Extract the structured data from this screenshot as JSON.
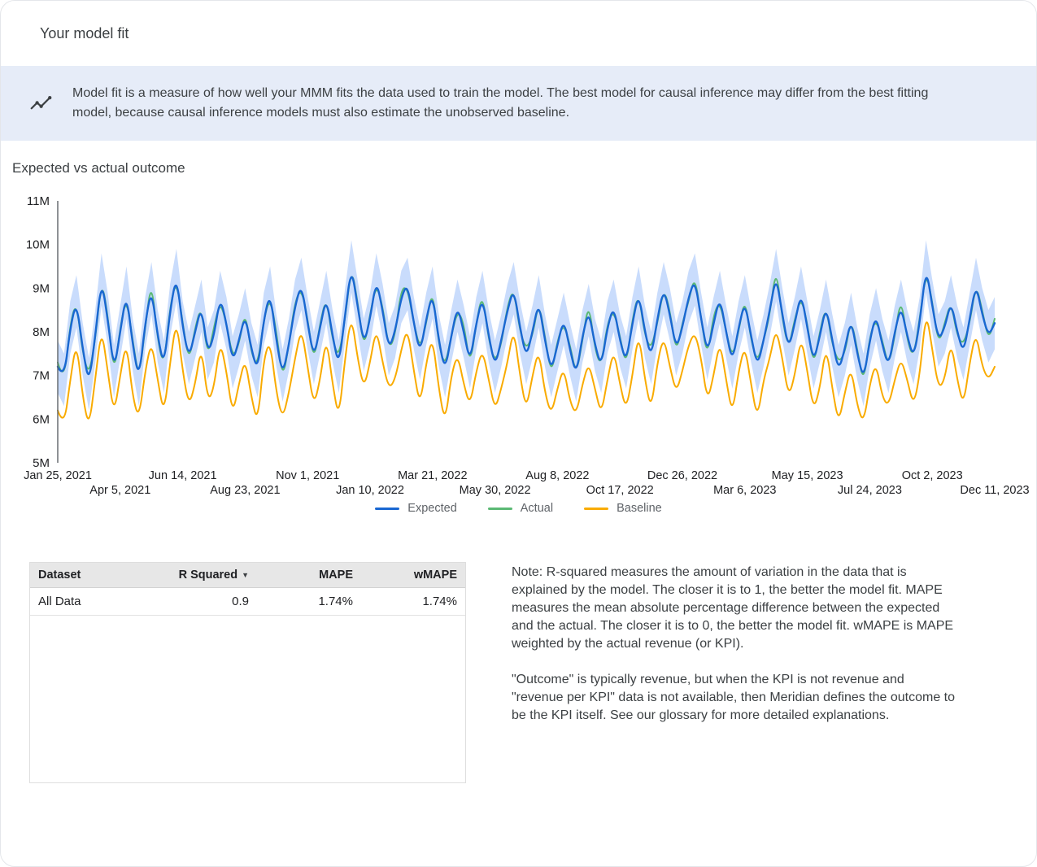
{
  "header": {
    "title": "Your model fit"
  },
  "banner": {
    "icon": "insights-icon",
    "text": "Model fit is a measure of how well your MMM fits the data used to train the model. The best model for causal inference may differ from the best fitting model, because causal inference models must also estimate the unobserved baseline."
  },
  "section": {
    "title": "Expected vs actual outcome"
  },
  "chart_data": {
    "type": "line",
    "title": "Expected vs actual outcome",
    "unit": "M",
    "grid": false,
    "legend_position": "bottom",
    "ylim": [
      5,
      11
    ],
    "y_tick_values": [
      5,
      6,
      7,
      8,
      9,
      10,
      11
    ],
    "y_tick_labels": [
      "5M",
      "6M",
      "7M",
      "8M",
      "9M",
      "10M",
      "11M"
    ],
    "x_ticks": [
      {
        "label": "Jan 25, 2021",
        "week": 0,
        "row": 1
      },
      {
        "label": "Apr 5, 2021",
        "week": 10,
        "row": 2
      },
      {
        "label": "Jun 14, 2021",
        "week": 20,
        "row": 1
      },
      {
        "label": "Aug 23, 2021",
        "week": 30,
        "row": 2
      },
      {
        "label": "Nov 1, 2021",
        "week": 40,
        "row": 1
      },
      {
        "label": "Jan 10, 2022",
        "week": 50,
        "row": 2
      },
      {
        "label": "Mar 21, 2022",
        "week": 60,
        "row": 1
      },
      {
        "label": "May 30, 2022",
        "week": 70,
        "row": 2
      },
      {
        "label": "Aug 8, 2022",
        "week": 80,
        "row": 1
      },
      {
        "label": "Oct 17, 2022",
        "week": 90,
        "row": 2
      },
      {
        "label": "Dec 26, 2022",
        "week": 100,
        "row": 1
      },
      {
        "label": "Mar 6, 2023",
        "week": 110,
        "row": 2
      },
      {
        "label": "May 15, 2023",
        "week": 120,
        "row": 1
      },
      {
        "label": "Jul 24, 2023",
        "week": 130,
        "row": 2
      },
      {
        "label": "Oct 2, 2023",
        "week": 140,
        "row": 1
      },
      {
        "label": "Dec 11, 2023",
        "week": 150,
        "row": 2
      }
    ],
    "band": {
      "series": "Expected",
      "half_width": 0.6,
      "color": "#a8c7fa",
      "opacity": 0.62
    },
    "series": [
      {
        "name": "Expected",
        "color": "#1967d2",
        "values": [
          7.2,
          6.9,
          8.1,
          8.7,
          7.6,
          6.8,
          7.9,
          9.2,
          8.3,
          7.1,
          8.0,
          8.9,
          7.7,
          6.9,
          8.2,
          9.0,
          7.9,
          7.2,
          8.5,
          9.3,
          8.1,
          7.4,
          8.0,
          8.6,
          7.5,
          7.9,
          8.8,
          8.2,
          7.3,
          7.8,
          8.4,
          7.6,
          7.1,
          8.3,
          8.9,
          7.8,
          7.0,
          7.7,
          8.6,
          9.1,
          8.2,
          7.4,
          8.1,
          8.8,
          7.9,
          7.2,
          8.4,
          9.5,
          8.6,
          7.7,
          8.3,
          9.2,
          8.5,
          7.6,
          8.0,
          8.8,
          9.1,
          8.2,
          7.5,
          8.3,
          8.9,
          7.8,
          7.1,
          7.9,
          8.6,
          8.0,
          7.3,
          8.2,
          8.8,
          7.9,
          7.2,
          7.8,
          8.5,
          9.0,
          8.1,
          7.4,
          8.0,
          8.7,
          7.8,
          7.1,
          7.7,
          8.3,
          7.6,
          7.0,
          7.9,
          8.5,
          7.7,
          7.2,
          8.1,
          8.6,
          7.8,
          7.3,
          8.2,
          8.9,
          8.0,
          7.4,
          8.3,
          9.0,
          8.4,
          7.6,
          8.1,
          8.8,
          9.2,
          8.3,
          7.5,
          8.2,
          8.8,
          8.0,
          7.3,
          8.1,
          8.7,
          7.9,
          7.2,
          7.8,
          8.5,
          9.3,
          8.4,
          7.6,
          8.2,
          8.9,
          8.1,
          7.3,
          7.9,
          8.6,
          7.8,
          7.1,
          7.6,
          8.3,
          7.5,
          6.9,
          7.8,
          8.4,
          7.7,
          7.2,
          8.0,
          8.6,
          7.9,
          7.4,
          8.2,
          9.5,
          8.6,
          7.8,
          8.1,
          8.7,
          8.0,
          7.5,
          8.3,
          9.1,
          8.4,
          7.9,
          8.2
        ]
      },
      {
        "name": "Actual",
        "color": "#5bb974",
        "values": [
          7.3,
          6.8,
          8.2,
          8.7,
          7.5,
          7.0,
          7.8,
          9.2,
          8.4,
          7.0,
          8.1,
          8.8,
          7.8,
          6.9,
          8.1,
          9.2,
          7.8,
          7.2,
          8.6,
          9.2,
          8.2,
          7.3,
          8.1,
          8.6,
          7.4,
          8.1,
          8.7,
          8.2,
          7.4,
          7.7,
          8.5,
          7.5,
          7.2,
          8.3,
          8.8,
          8.0,
          6.9,
          7.7,
          8.7,
          9.0,
          8.3,
          7.3,
          8.2,
          8.8,
          7.8,
          7.4,
          8.3,
          9.5,
          8.7,
          7.6,
          8.4,
          9.1,
          8.6,
          7.6,
          7.9,
          9.0,
          9.0,
          8.2,
          7.6,
          8.2,
          9.0,
          7.7,
          7.2,
          7.9,
          8.5,
          8.2,
          7.2,
          8.2,
          8.9,
          7.8,
          7.3,
          7.7,
          8.6,
          9.0,
          8.0,
          7.6,
          7.9,
          8.7,
          7.9,
          7.0,
          7.8,
          8.2,
          7.7,
          7.0,
          7.8,
          8.7,
          7.6,
          7.2,
          8.2,
          8.5,
          7.9,
          7.2,
          8.3,
          8.9,
          7.9,
          7.6,
          8.2,
          9.0,
          8.5,
          7.5,
          8.2,
          8.7,
          9.3,
          8.3,
          7.4,
          8.4,
          8.7,
          8.0,
          7.4,
          8.0,
          8.8,
          7.8,
          7.3,
          7.8,
          8.4,
          9.5,
          8.3,
          7.6,
          8.3,
          8.8,
          8.2,
          7.2,
          8.0,
          8.6,
          7.7,
          7.3,
          7.5,
          8.3,
          7.6,
          6.8,
          7.9,
          8.3,
          7.8,
          7.2,
          7.9,
          8.8,
          7.8,
          7.4,
          8.3,
          9.4,
          8.7,
          7.7,
          8.2,
          8.7,
          7.9,
          7.7,
          8.2,
          9.1,
          8.5,
          7.8,
          8.3
        ]
      },
      {
        "name": "Baseline",
        "color": "#f9ab00",
        "values": [
          6.2,
          5.8,
          6.9,
          7.8,
          6.5,
          5.8,
          6.9,
          8.1,
          7.1,
          6.1,
          7.0,
          7.8,
          6.5,
          6.0,
          7.1,
          7.8,
          6.9,
          6.1,
          7.3,
          8.3,
          7.1,
          6.3,
          6.8,
          7.7,
          6.4,
          6.7,
          7.8,
          7.1,
          6.1,
          6.8,
          7.4,
          6.5,
          5.9,
          7.4,
          7.8,
          6.6,
          6.0,
          6.6,
          7.4,
          8.1,
          7.2,
          6.3,
          6.9,
          7.9,
          6.8,
          6.0,
          7.4,
          8.4,
          7.4,
          6.7,
          7.3,
          8.1,
          7.3,
          6.7,
          6.9,
          7.6,
          8.1,
          7.1,
          6.3,
          7.3,
          7.9,
          6.7,
          5.9,
          7.0,
          7.5,
          6.8,
          6.3,
          7.1,
          7.6,
          6.9,
          6.2,
          6.7,
          7.3,
          8.1,
          7.0,
          6.2,
          7.0,
          7.6,
          6.6,
          6.1,
          6.7,
          7.2,
          6.4,
          6.1,
          6.8,
          7.3,
          6.7,
          6.1,
          6.9,
          7.6,
          6.8,
          6.2,
          7.0,
          8.0,
          6.9,
          6.2,
          7.3,
          7.9,
          7.2,
          6.6,
          7.1,
          7.7,
          8.0,
          7.4,
          6.4,
          7.0,
          7.8,
          6.9,
          6.1,
          7.1,
          7.7,
          6.8,
          6.0,
          6.9,
          7.4,
          8.1,
          7.4,
          6.5,
          7.0,
          7.9,
          7.1,
          6.2,
          6.7,
          7.7,
          6.7,
          5.9,
          6.6,
          7.2,
          6.3,
          5.9,
          6.8,
          7.3,
          6.5,
          6.3,
          6.9,
          7.4,
          6.9,
          6.3,
          7.0,
          8.5,
          7.6,
          6.7,
          6.9,
          7.8,
          6.9,
          6.3,
          7.3,
          8.0,
          7.2,
          6.9,
          7.2
        ]
      }
    ]
  },
  "table": {
    "headers": [
      "Dataset",
      "R Squared",
      "MAPE",
      "wMAPE"
    ],
    "sorted_by": "R Squared",
    "sort_icon": "▼",
    "rows": [
      [
        "All Data",
        "0.9",
        "1.74%",
        "1.74%"
      ]
    ]
  },
  "notes": {
    "para1": "Note: R-squared measures the amount of variation in the data that is explained by the model. The closer it is to 1, the better the model fit. MAPE measures the mean absolute percentage difference between the expected and the actual. The closer it is to 0, the better the model fit. wMAPE is MAPE weighted by the actual revenue (or KPI).",
    "para2": "\"Outcome\" is typically revenue, but when the KPI is not revenue and \"revenue per KPI\" data is not available, then Meridian defines the outcome to be the KPI itself. See our glossary for more detailed explanations."
  }
}
